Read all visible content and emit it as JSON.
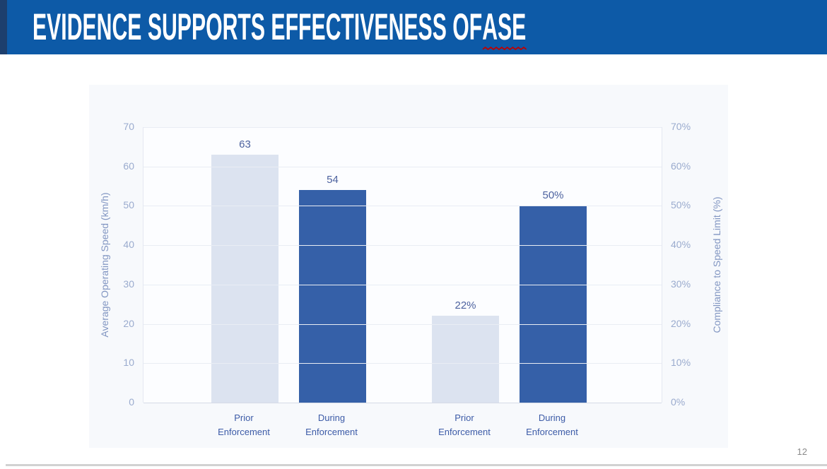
{
  "slide": {
    "title_main": "EVIDENCE SUPPORTS EFFECTIVENESS OF ",
    "title_flagged": "ASE",
    "page_number": "12"
  },
  "theme": {
    "header_blue": "#0d5aa7",
    "header_accent": "#1d3f6d",
    "spellcheck_red": "#c00000"
  },
  "chart_data": {
    "type": "bar",
    "title": "",
    "grid": true,
    "legend": false,
    "left_axis": {
      "label": "Average Operating Speed (km/h)",
      "ticks": [
        "70",
        "60",
        "50",
        "40",
        "30",
        "20",
        "10",
        "0"
      ],
      "range": [
        0,
        70
      ]
    },
    "right_axis": {
      "label": "Compliance to Speed Limit (%)",
      "ticks": [
        "70%",
        "60%",
        "50%",
        "40%",
        "30%",
        "20%",
        "10%",
        "0%"
      ],
      "range": [
        0,
        70
      ]
    },
    "bars": [
      {
        "category": "Prior Enforcement",
        "series": "speed",
        "axis": "left",
        "value": 63,
        "label": "63",
        "color": "light"
      },
      {
        "category": "During Enforcement",
        "series": "speed",
        "axis": "left",
        "value": 54,
        "label": "54",
        "color": "dark"
      },
      {
        "category": "Prior Enforcement",
        "series": "compliance",
        "axis": "right",
        "value": 22,
        "label": "22%",
        "color": "light"
      },
      {
        "category": "During Enforcement",
        "series": "compliance",
        "axis": "right",
        "value": 50,
        "label": "50%",
        "color": "dark"
      }
    ],
    "colors": {
      "light_bar": "#dce3f0",
      "dark_bar": "#3560a8"
    }
  }
}
